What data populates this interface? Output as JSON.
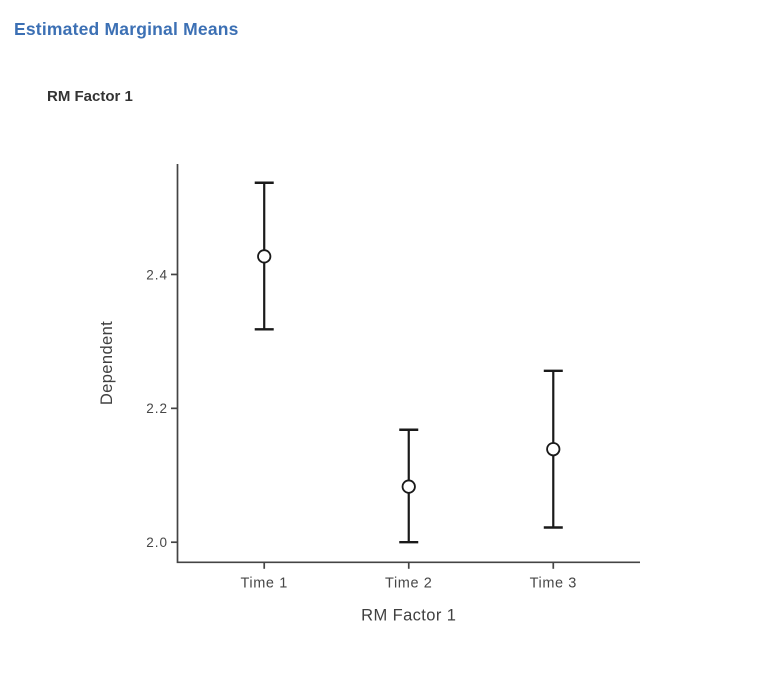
{
  "header": {
    "title": "Estimated Marginal Means",
    "accent_color": "#3c70b4"
  },
  "section": {
    "plot_title": "RM Factor 1"
  },
  "chart_data": {
    "type": "scatter",
    "subtype": "point-with-error-bars",
    "title": "RM Factor 1",
    "categories": [
      "Time 1",
      "Time 2",
      "Time 3"
    ],
    "series": [
      {
        "name": "Estimated Marginal Means",
        "means": [
          2.427,
          2.083,
          2.139
        ],
        "ci_lower": [
          2.318,
          2.0,
          2.022
        ],
        "ci_upper": [
          2.537,
          2.168,
          2.256
        ]
      }
    ],
    "xlabel": "RM Factor 1",
    "ylabel": "Dependent",
    "yticks": [
      2.0,
      2.2,
      2.4
    ],
    "ytick_labels": [
      "2.0",
      "2.2",
      "2.4"
    ],
    "ylim": [
      1.97,
      2.565
    ],
    "grid": false,
    "legend": false,
    "errorbar_color": "#1a1a1a",
    "point_fill": "#ffffff",
    "point_stroke": "#1a1a1a",
    "axis_color": "#444444",
    "text_color": "#474747"
  }
}
